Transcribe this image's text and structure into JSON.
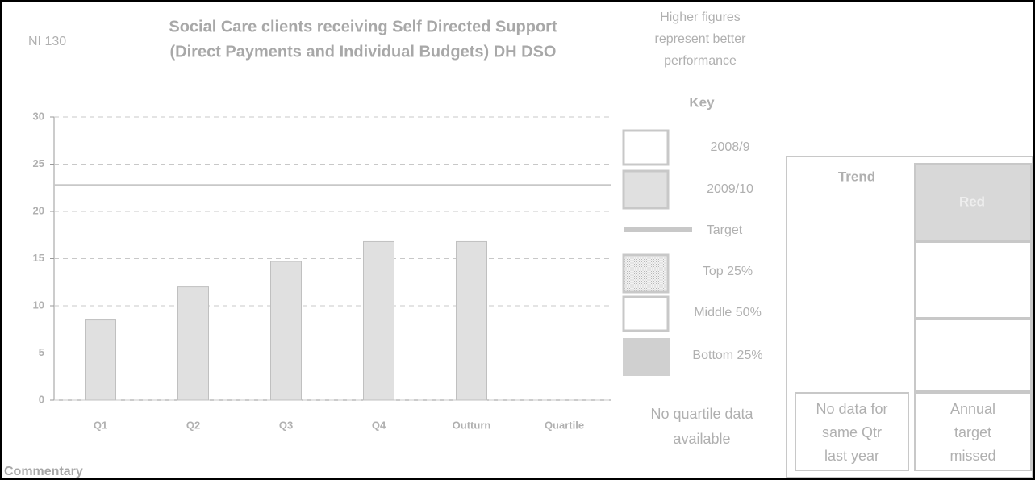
{
  "chart_data": {
    "type": "bar",
    "indicator": "NI 130",
    "title": [
      "Social Care clients receiving Self Directed Support",
      "(Direct Payments and Individual Budgets) DH DSO"
    ],
    "note": [
      "Higher figures",
      "represent better",
      "performance"
    ],
    "categories": [
      "Q1",
      "Q2",
      "Q3",
      "Q4",
      "Outturn",
      "Quartile"
    ],
    "series": [
      {
        "name": "2009/10",
        "color": "#e0e0e0",
        "values": [
          8.5,
          12,
          14.7,
          16.8,
          16.8,
          null
        ]
      }
    ],
    "target": 22.8,
    "target_color": "#c8c8c8",
    "ylim": [
      0,
      30
    ],
    "yticks": [
      0,
      5,
      10,
      15,
      20,
      25,
      30
    ],
    "grid": true,
    "key": {
      "title": "Key",
      "items": [
        "2008/9",
        "Target",
        "Top 25%",
        "Middle 50%",
        "Bottom 25%"
      ]
    },
    "quartile_note": [
      "No quartile data",
      "available"
    ],
    "trend": {
      "title": "Trend",
      "status": "Red",
      "trend_note": [
        "No data for",
        "same Qtr",
        "last year"
      ],
      "target_note": [
        "Annual",
        "target",
        "missed"
      ]
    },
    "commentary": "Commentary"
  }
}
